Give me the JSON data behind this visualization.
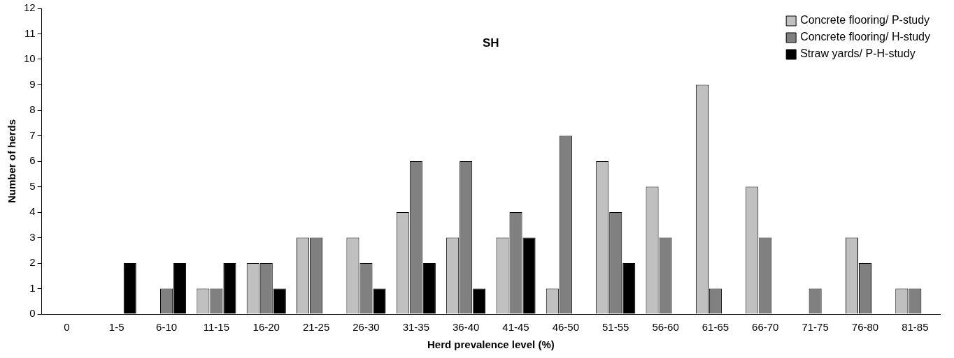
{
  "chart_data": {
    "type": "bar",
    "title": "SH",
    "xlabel": "Herd prevalence level (%)",
    "ylabel": "Number of herds",
    "categories": [
      "0",
      "1-5",
      "6-10",
      "11-15",
      "16-20",
      "21-25",
      "26-30",
      "31-35",
      "36-40",
      "41-45",
      "46-50",
      "51-55",
      "56-60",
      "61-65",
      "66-70",
      "71-75",
      "76-80",
      "81-85"
    ],
    "series": [
      {
        "name": "Concrete flooring/ P-study",
        "color": "#c0c0c0",
        "values": [
          0,
          0,
          0,
          1,
          2,
          3,
          3,
          4,
          3,
          3,
          1,
          6,
          5,
          9,
          5,
          0,
          3,
          1
        ]
      },
      {
        "name": "Concrete flooring/ H-study",
        "color": "#808080",
        "values": [
          0,
          0,
          1,
          1,
          2,
          3,
          2,
          6,
          6,
          4,
          7,
          4,
          3,
          1,
          3,
          1,
          2,
          1
        ]
      },
      {
        "name": "Straw yards/ P-H-study",
        "color": "#000000",
        "values": [
          0,
          2,
          2,
          2,
          1,
          0,
          1,
          2,
          1,
          3,
          0,
          2,
          0,
          0,
          0,
          0,
          0,
          0
        ]
      }
    ],
    "ylim": [
      0,
      12
    ],
    "yticks": [
      0,
      1,
      2,
      3,
      4,
      5,
      6,
      7,
      8,
      9,
      10,
      11,
      12
    ],
    "grid": false,
    "legend": "top right"
  }
}
